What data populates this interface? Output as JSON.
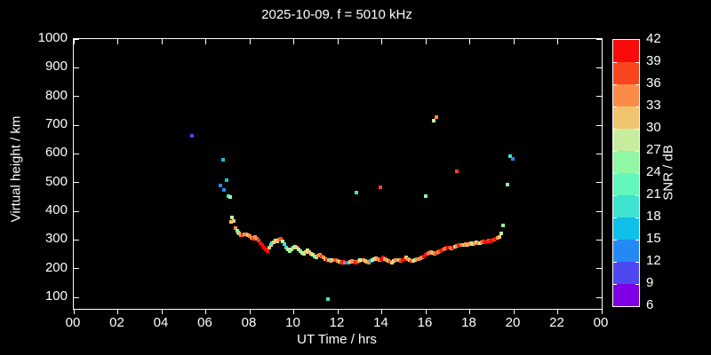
{
  "title": "2025-10-09. f = 5010 kHz",
  "chart_data": {
    "type": "scatter",
    "title": "2025-10-09. f = 5010 kHz",
    "xlabel": "UT Time / hrs",
    "ylabel": "Virtual height / km",
    "background_color": "#000000",
    "text_color": "#ffffff",
    "xlim_hours": [
      0,
      24
    ],
    "ylim_km": [
      100,
      1000
    ],
    "grid": false,
    "x_tick_hours": [
      0,
      2,
      4,
      6,
      8,
      10,
      12,
      14,
      16,
      18,
      20,
      22,
      24
    ],
    "x_tick_labels": [
      "00",
      "02",
      "04",
      "06",
      "08",
      "10",
      "12",
      "14",
      "16",
      "18",
      "20",
      "22",
      "00"
    ],
    "y_tick_km": [
      100,
      200,
      300,
      400,
      500,
      600,
      700,
      800,
      900,
      1000
    ],
    "y_tick_labels": [
      "100",
      "200",
      "300",
      "400",
      "500",
      "600",
      "700",
      "800",
      "900",
      "1000"
    ],
    "colorbar": {
      "label": "SNR / dB",
      "min": 6,
      "max": 42,
      "step": 3,
      "tick_labels": [
        "6",
        "9",
        "12",
        "15",
        "18",
        "21",
        "24",
        "27",
        "30",
        "33",
        "36",
        "39",
        "42"
      ],
      "colors_bottom_to_top": [
        "#8000E6",
        "#4D48F2",
        "#2589F5",
        "#10C0E8",
        "#3DE3CE",
        "#63F7BE",
        "#90F7A4",
        "#C8EC9E",
        "#F0C46E",
        "#FB8C47",
        "#F9461F",
        "#FA0A0A"
      ],
      "position": "right"
    },
    "points_format": [
      "ut_hour",
      "virtual_height_km",
      "snr_db"
    ],
    "points": [
      [
        5.37,
        663,
        10
      ],
      [
        6.67,
        490,
        13
      ],
      [
        6.79,
        579,
        16
      ],
      [
        6.83,
        474,
        13
      ],
      [
        6.95,
        508,
        16
      ],
      [
        7.03,
        453,
        19
      ],
      [
        7.11,
        448,
        25
      ],
      [
        7.15,
        363,
        31
      ],
      [
        7.19,
        378,
        28
      ],
      [
        7.27,
        366,
        31
      ],
      [
        7.35,
        340,
        34
      ],
      [
        7.43,
        332,
        25
      ],
      [
        7.47,
        327,
        22
      ],
      [
        7.51,
        322,
        31
      ],
      [
        7.59,
        318,
        34
      ],
      [
        7.67,
        315,
        37
      ],
      [
        7.75,
        319,
        34
      ],
      [
        7.83,
        321,
        34
      ],
      [
        7.91,
        316,
        31
      ],
      [
        7.99,
        312,
        34
      ],
      [
        8.07,
        308,
        34
      ],
      [
        8.15,
        305,
        37
      ],
      [
        8.23,
        309,
        34
      ],
      [
        8.31,
        305,
        34
      ],
      [
        8.39,
        299,
        37
      ],
      [
        8.47,
        290,
        40
      ],
      [
        8.55,
        283,
        40
      ],
      [
        8.63,
        274,
        40
      ],
      [
        8.71,
        267,
        40
      ],
      [
        8.79,
        261,
        40
      ],
      [
        8.87,
        272,
        31
      ],
      [
        8.95,
        281,
        31
      ],
      [
        9.03,
        288,
        19
      ],
      [
        9.11,
        293,
        31
      ],
      [
        9.19,
        298,
        28
      ],
      [
        9.27,
        294,
        31
      ],
      [
        9.35,
        301,
        34
      ],
      [
        9.43,
        303,
        37
      ],
      [
        9.51,
        296,
        28
      ],
      [
        9.59,
        286,
        19
      ],
      [
        9.67,
        273,
        19
      ],
      [
        9.75,
        266,
        28
      ],
      [
        9.83,
        262,
        25
      ],
      [
        9.91,
        268,
        28
      ],
      [
        9.99,
        273,
        25
      ],
      [
        10.07,
        276,
        28
      ],
      [
        10.15,
        272,
        31
      ],
      [
        10.23,
        268,
        28
      ],
      [
        10.31,
        262,
        25
      ],
      [
        10.39,
        256,
        28
      ],
      [
        10.47,
        252,
        28
      ],
      [
        10.55,
        258,
        31
      ],
      [
        10.63,
        263,
        28
      ],
      [
        10.71,
        258,
        31
      ],
      [
        10.79,
        252,
        31
      ],
      [
        10.87,
        248,
        28
      ],
      [
        10.95,
        243,
        25
      ],
      [
        11.03,
        240,
        25
      ],
      [
        11.11,
        245,
        34
      ],
      [
        11.19,
        247,
        34
      ],
      [
        11.27,
        243,
        37
      ],
      [
        11.35,
        239,
        34
      ],
      [
        11.43,
        234,
        31
      ],
      [
        11.51,
        231,
        40
      ],
      [
        11.55,
        95,
        19
      ],
      [
        11.59,
        229,
        25
      ],
      [
        11.67,
        227,
        34
      ],
      [
        11.75,
        229,
        28
      ],
      [
        11.83,
        231,
        34
      ],
      [
        11.91,
        229,
        37
      ],
      [
        11.99,
        226,
        34
      ],
      [
        12.07,
        224,
        31
      ],
      [
        12.15,
        222,
        37
      ],
      [
        12.23,
        224,
        40
      ],
      [
        12.31,
        222,
        34
      ],
      [
        12.39,
        220,
        13
      ],
      [
        12.47,
        222,
        16
      ],
      [
        12.55,
        224,
        31
      ],
      [
        12.63,
        226,
        34
      ],
      [
        12.71,
        224,
        34
      ],
      [
        12.79,
        222,
        40
      ],
      [
        12.85,
        465,
        19
      ],
      [
        12.87,
        224,
        37
      ],
      [
        12.95,
        227,
        34
      ],
      [
        13.03,
        229,
        28
      ],
      [
        13.11,
        231,
        28
      ],
      [
        13.19,
        229,
        34
      ],
      [
        13.27,
        226,
        31
      ],
      [
        13.35,
        224,
        31
      ],
      [
        13.43,
        222,
        34
      ],
      [
        13.51,
        227,
        16
      ],
      [
        13.59,
        231,
        25
      ],
      [
        13.67,
        234,
        28
      ],
      [
        13.75,
        236,
        31
      ],
      [
        13.83,
        232,
        34
      ],
      [
        13.91,
        229,
        34
      ],
      [
        13.95,
        482,
        37
      ],
      [
        13.99,
        234,
        40
      ],
      [
        14.07,
        238,
        40
      ],
      [
        14.15,
        232,
        31
      ],
      [
        14.23,
        229,
        34
      ],
      [
        14.31,
        227,
        31
      ],
      [
        14.39,
        224,
        37
      ],
      [
        14.47,
        222,
        31
      ],
      [
        14.55,
        226,
        28
      ],
      [
        14.63,
        229,
        34
      ],
      [
        14.71,
        231,
        34
      ],
      [
        14.79,
        229,
        31
      ],
      [
        14.87,
        226,
        37
      ],
      [
        14.95,
        229,
        40
      ],
      [
        15.03,
        234,
        40
      ],
      [
        15.11,
        238,
        31
      ],
      [
        15.19,
        234,
        34
      ],
      [
        15.27,
        231,
        31
      ],
      [
        15.35,
        228,
        37
      ],
      [
        15.43,
        226,
        31
      ],
      [
        15.51,
        229,
        28
      ],
      [
        15.59,
        232,
        34
      ],
      [
        15.67,
        234,
        34
      ],
      [
        15.75,
        237,
        34
      ],
      [
        15.83,
        240,
        34
      ],
      [
        15.91,
        243,
        40
      ],
      [
        15.99,
        248,
        40
      ],
      [
        16.0,
        452,
        25
      ],
      [
        16.07,
        252,
        37
      ],
      [
        16.15,
        255,
        34
      ],
      [
        16.23,
        258,
        34
      ],
      [
        16.31,
        255,
        31
      ],
      [
        16.36,
        715,
        28
      ],
      [
        16.39,
        252,
        34
      ],
      [
        16.47,
        255,
        37
      ],
      [
        16.48,
        728,
        34
      ],
      [
        16.55,
        258,
        34
      ],
      [
        16.63,
        262,
        37
      ],
      [
        16.71,
        265,
        40
      ],
      [
        16.79,
        268,
        37
      ],
      [
        16.87,
        270,
        34
      ],
      [
        16.95,
        272,
        37
      ],
      [
        17.03,
        274,
        40
      ],
      [
        17.11,
        272,
        37
      ],
      [
        17.19,
        270,
        34
      ],
      [
        17.27,
        273,
        40
      ],
      [
        17.35,
        276,
        25
      ],
      [
        17.4,
        540,
        37
      ],
      [
        17.43,
        279,
        34
      ],
      [
        17.51,
        281,
        40
      ],
      [
        17.59,
        283,
        37
      ],
      [
        17.67,
        281,
        34
      ],
      [
        17.75,
        284,
        31
      ],
      [
        17.83,
        286,
        34
      ],
      [
        17.91,
        284,
        31
      ],
      [
        17.99,
        287,
        34
      ],
      [
        18.07,
        289,
        31
      ],
      [
        18.15,
        287,
        28
      ],
      [
        18.23,
        290,
        34
      ],
      [
        18.31,
        292,
        31
      ],
      [
        18.39,
        290,
        34
      ],
      [
        18.47,
        288,
        28
      ],
      [
        18.55,
        291,
        34
      ],
      [
        18.63,
        294,
        37
      ],
      [
        18.71,
        292,
        40
      ],
      [
        18.79,
        295,
        40
      ],
      [
        18.87,
        297,
        37
      ],
      [
        18.95,
        295,
        40
      ],
      [
        19.03,
        298,
        40
      ],
      [
        19.11,
        300,
        37
      ],
      [
        19.19,
        303,
        40
      ],
      [
        19.27,
        306,
        34
      ],
      [
        19.35,
        309,
        31
      ],
      [
        19.43,
        323,
        28
      ],
      [
        19.51,
        351,
        25
      ],
      [
        19.72,
        494,
        25
      ],
      [
        19.85,
        593,
        19
      ],
      [
        19.95,
        581,
        13
      ]
    ]
  }
}
